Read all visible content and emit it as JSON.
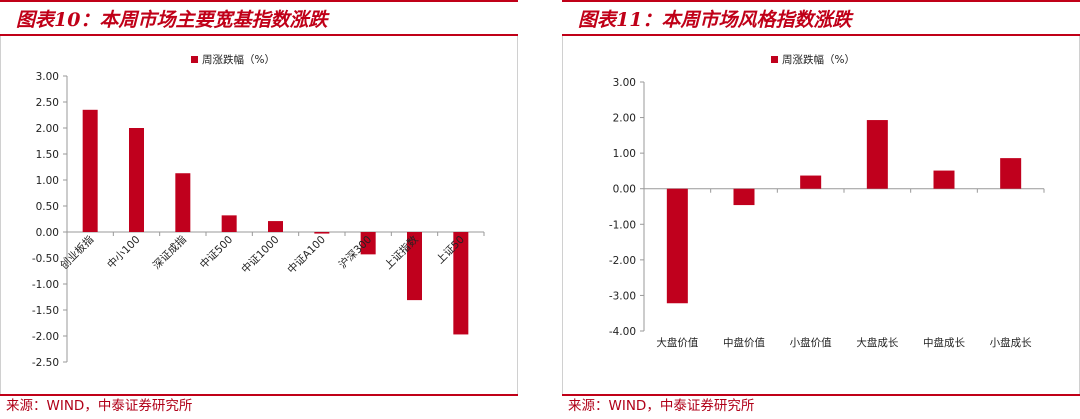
{
  "colors": {
    "accent": "#c00018",
    "bar": "#c0001d"
  },
  "charts": [
    {
      "title": "图表10：本周市场主要宽基指数涨跌",
      "source": "来源：WIND，中泰证券研究所",
      "chart_data": {
        "type": "bar",
        "categories": [
          "创业板指",
          "中小100",
          "深证成指",
          "中证500",
          "中证1000",
          "中证A100",
          "沪深300",
          "上证指数",
          "上证50"
        ],
        "series": [
          {
            "name": "周涨跌幅（%）",
            "values": [
              2.35,
              2.0,
              1.13,
              0.32,
              0.21,
              -0.03,
              -0.43,
              -1.31,
              -1.97
            ]
          }
        ],
        "ylim": [
          -2.5,
          3.0
        ],
        "yticks": [
          "3.00",
          "2.50",
          "2.00",
          "1.50",
          "1.00",
          "0.50",
          "0.00",
          "-0.50",
          "-1.00",
          "-1.50",
          "-2.00",
          "-2.50"
        ],
        "xlabel": "",
        "ylabel": "",
        "grid": false,
        "legend_position": "top-center"
      }
    },
    {
      "title": "图表11：本周市场风格指数涨跌",
      "source": "来源：WIND，中泰证券研究所",
      "chart_data": {
        "type": "bar",
        "categories": [
          "大盘价值",
          "中盘价值",
          "小盘价值",
          "大盘成长",
          "中盘成长",
          "小盘成长"
        ],
        "series": [
          {
            "name": "周涨跌幅（%）",
            "values": [
              -3.22,
              -0.46,
              0.37,
              1.93,
              0.51,
              0.86
            ]
          }
        ],
        "ylim": [
          -4.0,
          3.0
        ],
        "yticks": [
          "3.00",
          "2.00",
          "1.00",
          "0.00",
          "-1.00",
          "-2.00",
          "-3.00",
          "-4.00"
        ],
        "xlabel": "",
        "ylabel": "",
        "grid": false,
        "legend_position": "top-center"
      }
    }
  ]
}
